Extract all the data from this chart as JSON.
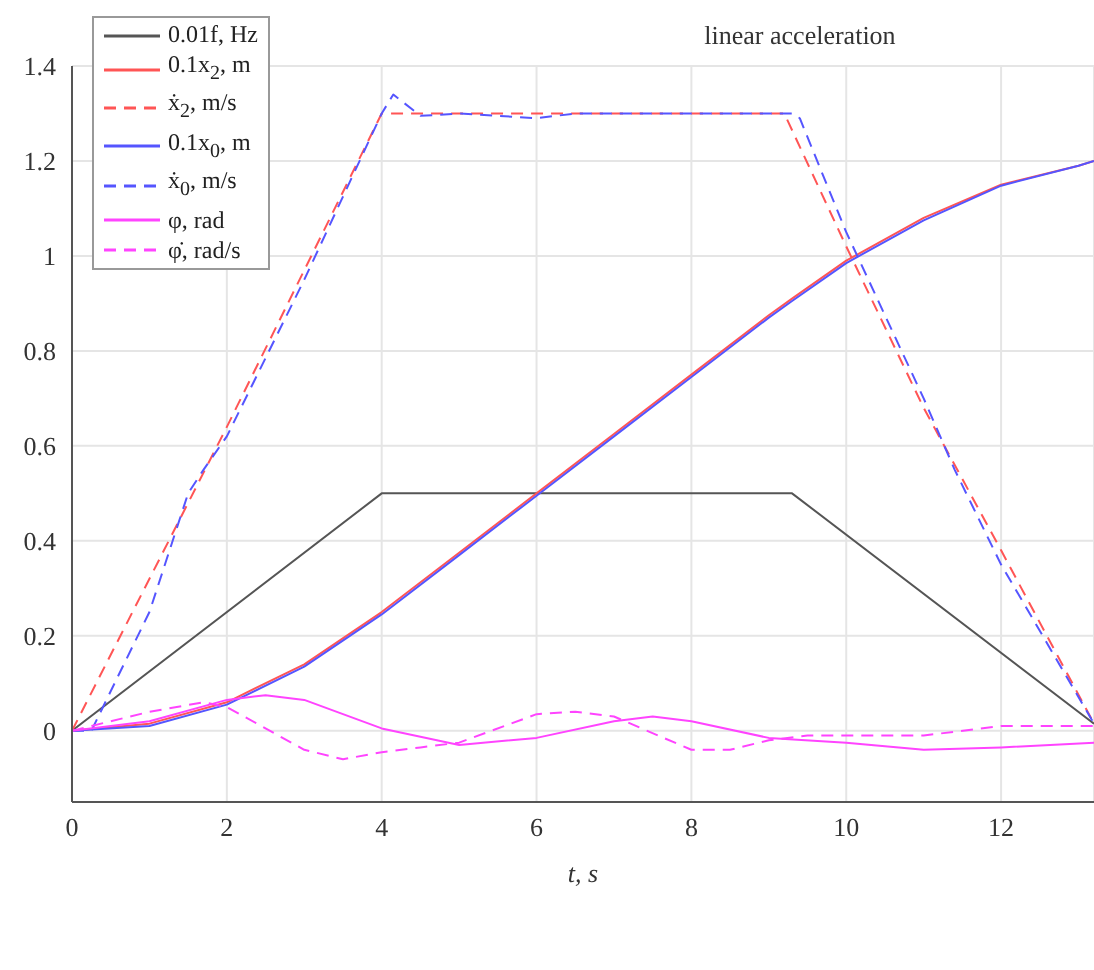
{
  "chart_data": {
    "type": "line",
    "title": "linear acceleration",
    "xlabel": "t, s",
    "xlim": [
      0,
      13.2
    ],
    "xticks": [
      0,
      2,
      4,
      6,
      8,
      10,
      12
    ],
    "ylim": [
      -0.15,
      1.4
    ],
    "yticks": [
      0,
      0.2,
      0.4,
      0.6,
      0.8,
      1,
      1.2,
      1.4
    ],
    "grid": true,
    "legend": "top left",
    "marker": "none",
    "series": [
      {
        "name": "0.01f, Hz",
        "color": "#555555",
        "line_style": "solid",
        "x": [
          0,
          4,
          9.3,
          13.2
        ],
        "values": [
          0,
          0.5,
          0.5,
          0.015
        ]
      },
      {
        "name": "0.1x$_{2}$, m",
        "color": "#ff5555",
        "line_style": "solid",
        "x": [
          0,
          1,
          2,
          3,
          4,
          5,
          6,
          7,
          8,
          9,
          9.3,
          10,
          11,
          12,
          13,
          13.2
        ],
        "values": [
          0,
          0.015,
          0.06,
          0.14,
          0.25,
          0.375,
          0.5,
          0.625,
          0.75,
          0.875,
          0.91,
          0.99,
          1.08,
          1.15,
          1.19,
          1.2
        ]
      },
      {
        "name": "ẋ$_{2}$, m/s",
        "color": "#ff5555",
        "line_style": "dashed",
        "x": [
          0,
          2,
          4,
          9.2,
          10,
          11,
          12,
          13.2
        ],
        "values": [
          0,
          0.64,
          1.3,
          1.3,
          1.02,
          0.68,
          0.38,
          0.015
        ]
      },
      {
        "name": "0.1x$_{0}$, m",
        "color": "#5555ff",
        "line_style": "solid",
        "x": [
          0,
          1,
          2,
          3,
          4,
          5,
          6,
          7,
          8,
          9,
          9.3,
          10,
          11,
          12,
          13,
          13.2
        ],
        "values": [
          0,
          0.01,
          0.055,
          0.135,
          0.245,
          0.37,
          0.495,
          0.62,
          0.745,
          0.87,
          0.905,
          0.985,
          1.075,
          1.148,
          1.19,
          1.2
        ]
      },
      {
        "name": "ẋ$_{0}$, m/s",
        "color": "#5555ff",
        "line_style": "dashed",
        "x": [
          0,
          0.25,
          1,
          1.5,
          1.7,
          2,
          3,
          4,
          4.15,
          4.5,
          5,
          6,
          6.5,
          9.3,
          9.4,
          10,
          11,
          11.4,
          12,
          13.2
        ],
        "values": [
          0,
          0,
          0.25,
          0.5,
          0.55,
          0.62,
          0.95,
          1.3,
          1.34,
          1.295,
          1.3,
          1.29,
          1.3,
          1.3,
          1.29,
          1.05,
          0.7,
          0.55,
          0.35,
          0.015
        ]
      },
      {
        "name": "φ, rad",
        "color": "#ff44ff",
        "line_style": "solid",
        "x": [
          0,
          1,
          2,
          2.5,
          3,
          4,
          5,
          6,
          7,
          7.5,
          8,
          9,
          10,
          11,
          12,
          13.2
        ],
        "values": [
          0,
          0.02,
          0.065,
          0.075,
          0.065,
          0.005,
          -0.03,
          -0.015,
          0.02,
          0.03,
          0.02,
          -0.015,
          -0.025,
          -0.04,
          -0.035,
          -0.025
        ]
      },
      {
        "name": "φ̇, rad/s",
        "color": "#ff44ff",
        "line_style": "dashed",
        "x": [
          0,
          1,
          1.7,
          2,
          3,
          3.5,
          4,
          4.5,
          5,
          6,
          6.5,
          7,
          8,
          8.5,
          9,
          9.5,
          10,
          11,
          12,
          13.2
        ],
        "values": [
          0,
          0.04,
          0.06,
          0.05,
          -0.04,
          -0.06,
          -0.045,
          -0.035,
          -0.025,
          0.035,
          0.04,
          0.03,
          -0.04,
          -0.04,
          -0.02,
          -0.01,
          -0.01,
          -0.01,
          0.01,
          0.01
        ]
      }
    ]
  }
}
